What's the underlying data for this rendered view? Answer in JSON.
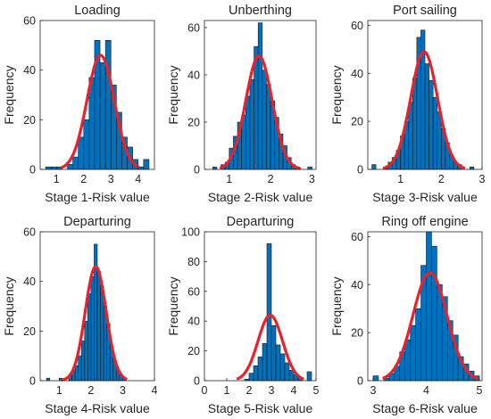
{
  "colors": {
    "bar_fill": "#0072BD",
    "bar_edge": "#1a1a1a",
    "fit_line": "#E8212B",
    "axis": "#262626"
  },
  "chart_data": [
    {
      "type": "bar",
      "title": "Loading",
      "xlabel": "Stage 1-Risk value",
      "ylabel": "Frequency",
      "xlim": [
        0.4,
        4.6
      ],
      "ylim": [
        0,
        60
      ],
      "xticks": [
        1,
        2,
        3,
        4
      ],
      "yticks": [
        0,
        20,
        40,
        60
      ],
      "bin_width": 0.2,
      "bins": [
        {
          "x0": 0.6,
          "count": 1
        },
        {
          "x0": 0.8,
          "count": 1
        },
        {
          "x0": 1.0,
          "count": 1
        },
        {
          "x0": 1.4,
          "count": 2
        },
        {
          "x0": 1.6,
          "count": 5
        },
        {
          "x0": 1.8,
          "count": 13
        },
        {
          "x0": 2.0,
          "count": 20
        },
        {
          "x0": 2.2,
          "count": 37
        },
        {
          "x0": 2.4,
          "count": 52
        },
        {
          "x0": 2.6,
          "count": 43
        },
        {
          "x0": 2.8,
          "count": 52
        },
        {
          "x0": 3.0,
          "count": 34
        },
        {
          "x0": 3.2,
          "count": 23
        },
        {
          "x0": 3.4,
          "count": 13
        },
        {
          "x0": 3.6,
          "count": 9
        },
        {
          "x0": 3.8,
          "count": 4
        },
        {
          "x0": 4.0,
          "count": 1
        },
        {
          "x0": 4.2,
          "count": 4
        }
      ],
      "fit": {
        "mu": 2.62,
        "sigma": 0.5,
        "peak": 46,
        "range": [
          1.2,
          4.0
        ]
      }
    },
    {
      "type": "bar",
      "title": "Unberthing",
      "xlabel": "Stage 2-Risk value",
      "ylabel": "Frequency",
      "xlim": [
        0.4,
        3.1
      ],
      "ylim": [
        0,
        63
      ],
      "xticks": [
        1,
        2,
        3
      ],
      "yticks": [
        0,
        20,
        40,
        60
      ],
      "bin_width": 0.1,
      "bins": [
        {
          "x0": 0.6,
          "count": 1
        },
        {
          "x0": 0.8,
          "count": 2
        },
        {
          "x0": 0.9,
          "count": 3
        },
        {
          "x0": 1.0,
          "count": 9
        },
        {
          "x0": 1.1,
          "count": 14
        },
        {
          "x0": 1.2,
          "count": 20
        },
        {
          "x0": 1.3,
          "count": 23
        },
        {
          "x0": 1.4,
          "count": 31
        },
        {
          "x0": 1.5,
          "count": 38
        },
        {
          "x0": 1.6,
          "count": 52
        },
        {
          "x0": 1.7,
          "count": 62
        },
        {
          "x0": 1.8,
          "count": 42
        },
        {
          "x0": 1.9,
          "count": 36
        },
        {
          "x0": 2.0,
          "count": 29
        },
        {
          "x0": 2.1,
          "count": 22
        },
        {
          "x0": 2.2,
          "count": 15
        },
        {
          "x0": 2.3,
          "count": 10
        },
        {
          "x0": 2.4,
          "count": 5
        },
        {
          "x0": 2.5,
          "count": 2
        },
        {
          "x0": 2.6,
          "count": 1
        },
        {
          "x0": 2.9,
          "count": 1
        }
      ],
      "fit": {
        "mu": 1.72,
        "sigma": 0.32,
        "peak": 48,
        "range": [
          0.8,
          2.7
        ]
      }
    },
    {
      "type": "bar",
      "title": "Port sailing",
      "xlabel": "Stage 3-Risk value",
      "ylabel": "Frequency",
      "xlim": [
        0.2,
        3.0
      ],
      "ylim": [
        0,
        62
      ],
      "xticks": [
        1,
        2,
        3
      ],
      "yticks": [
        0,
        20,
        40,
        60
      ],
      "bin_width": 0.1,
      "bins": [
        {
          "x0": 0.3,
          "count": 2
        },
        {
          "x0": 0.6,
          "count": 1
        },
        {
          "x0": 0.7,
          "count": 3
        },
        {
          "x0": 0.8,
          "count": 5
        },
        {
          "x0": 0.9,
          "count": 8
        },
        {
          "x0": 1.0,
          "count": 14
        },
        {
          "x0": 1.1,
          "count": 20
        },
        {
          "x0": 1.2,
          "count": 28
        },
        {
          "x0": 1.3,
          "count": 38
        },
        {
          "x0": 1.4,
          "count": 55
        },
        {
          "x0": 1.5,
          "count": 58
        },
        {
          "x0": 1.6,
          "count": 44
        },
        {
          "x0": 1.7,
          "count": 37
        },
        {
          "x0": 1.8,
          "count": 30
        },
        {
          "x0": 1.9,
          "count": 24
        },
        {
          "x0": 2.0,
          "count": 17
        },
        {
          "x0": 2.1,
          "count": 11
        },
        {
          "x0": 2.2,
          "count": 6
        },
        {
          "x0": 2.3,
          "count": 3
        },
        {
          "x0": 2.4,
          "count": 2
        },
        {
          "x0": 2.7,
          "count": 1
        }
      ],
      "fit": {
        "mu": 1.58,
        "sigma": 0.33,
        "peak": 49,
        "range": [
          0.6,
          2.55
        ]
      }
    },
    {
      "type": "bar",
      "title": "Departuring",
      "xlabel": "Stage 4-Risk value",
      "ylabel": "Frequency",
      "xlim": [
        0.4,
        4.0
      ],
      "ylim": [
        0,
        60
      ],
      "xticks": [
        1,
        2,
        3,
        4
      ],
      "yticks": [
        0,
        20,
        40,
        60
      ],
      "bin_width": 0.1,
      "bins": [
        {
          "x0": 0.6,
          "count": 1
        },
        {
          "x0": 1.0,
          "count": 1
        },
        {
          "x0": 1.3,
          "count": 2
        },
        {
          "x0": 1.4,
          "count": 4
        },
        {
          "x0": 1.5,
          "count": 6
        },
        {
          "x0": 1.6,
          "count": 10
        },
        {
          "x0": 1.7,
          "count": 16
        },
        {
          "x0": 1.8,
          "count": 24
        },
        {
          "x0": 1.9,
          "count": 35
        },
        {
          "x0": 2.0,
          "count": 42
        },
        {
          "x0": 2.1,
          "count": 55
        },
        {
          "x0": 2.2,
          "count": 44
        },
        {
          "x0": 2.3,
          "count": 38
        },
        {
          "x0": 2.4,
          "count": 30
        },
        {
          "x0": 2.5,
          "count": 23
        },
        {
          "x0": 2.6,
          "count": 14
        },
        {
          "x0": 2.7,
          "count": 8
        },
        {
          "x0": 2.8,
          "count": 4
        },
        {
          "x0": 2.9,
          "count": 2
        },
        {
          "x0": 3.0,
          "count": 1
        }
      ],
      "fit": {
        "mu": 2.15,
        "sigma": 0.33,
        "peak": 46,
        "range": [
          1.1,
          3.1
        ]
      }
    },
    {
      "type": "bar",
      "title": "Departuring",
      "xlabel": "Stage 5-Risk value",
      "ylabel": "Frequency",
      "xlim": [
        0,
        5
      ],
      "ylim": [
        0,
        100
      ],
      "xticks": [
        0,
        1,
        2,
        3,
        4,
        5
      ],
      "yticks": [
        0,
        20,
        40,
        60,
        80,
        100
      ],
      "bin_width": 0.2,
      "bins": [
        {
          "x0": 1.8,
          "count": 1
        },
        {
          "x0": 2.0,
          "count": 5
        },
        {
          "x0": 2.2,
          "count": 10
        },
        {
          "x0": 2.4,
          "count": 16
        },
        {
          "x0": 2.6,
          "count": 25
        },
        {
          "x0": 2.8,
          "count": 92
        },
        {
          "x0": 3.0,
          "count": 37
        },
        {
          "x0": 3.2,
          "count": 24
        },
        {
          "x0": 3.4,
          "count": 18
        },
        {
          "x0": 3.6,
          "count": 12
        },
        {
          "x0": 3.8,
          "count": 7
        },
        {
          "x0": 4.0,
          "count": 4
        },
        {
          "x0": 4.2,
          "count": 2
        },
        {
          "x0": 4.6,
          "count": 6
        }
      ],
      "fit": {
        "mu": 2.95,
        "sigma": 0.55,
        "peak": 44,
        "range": [
          1.5,
          4.4
        ]
      }
    },
    {
      "type": "bar",
      "title": "Ring off engine",
      "xlabel": "Stage 6-Risk value",
      "ylabel": "Frequency",
      "xlim": [
        2.9,
        5.05
      ],
      "ylim": [
        0,
        62
      ],
      "xticks": [
        3,
        4,
        5
      ],
      "yticks": [
        0,
        20,
        40,
        60
      ],
      "bin_width": 0.1,
      "bins": [
        {
          "x0": 3.0,
          "count": 2
        },
        {
          "x0": 3.2,
          "count": 1
        },
        {
          "x0": 3.3,
          "count": 3
        },
        {
          "x0": 3.4,
          "count": 6
        },
        {
          "x0": 3.5,
          "count": 12
        },
        {
          "x0": 3.6,
          "count": 17
        },
        {
          "x0": 3.7,
          "count": 23
        },
        {
          "x0": 3.8,
          "count": 30
        },
        {
          "x0": 3.9,
          "count": 48
        },
        {
          "x0": 4.0,
          "count": 62
        },
        {
          "x0": 4.1,
          "count": 56
        },
        {
          "x0": 4.2,
          "count": 40
        },
        {
          "x0": 4.3,
          "count": 35
        },
        {
          "x0": 4.4,
          "count": 25
        },
        {
          "x0": 4.5,
          "count": 19
        },
        {
          "x0": 4.6,
          "count": 10
        },
        {
          "x0": 4.7,
          "count": 7
        },
        {
          "x0": 4.8,
          "count": 4
        },
        {
          "x0": 4.9,
          "count": 2
        }
      ],
      "fit": {
        "mu": 4.07,
        "sigma": 0.32,
        "peak": 45,
        "range": [
          3.2,
          4.95
        ]
      }
    }
  ]
}
